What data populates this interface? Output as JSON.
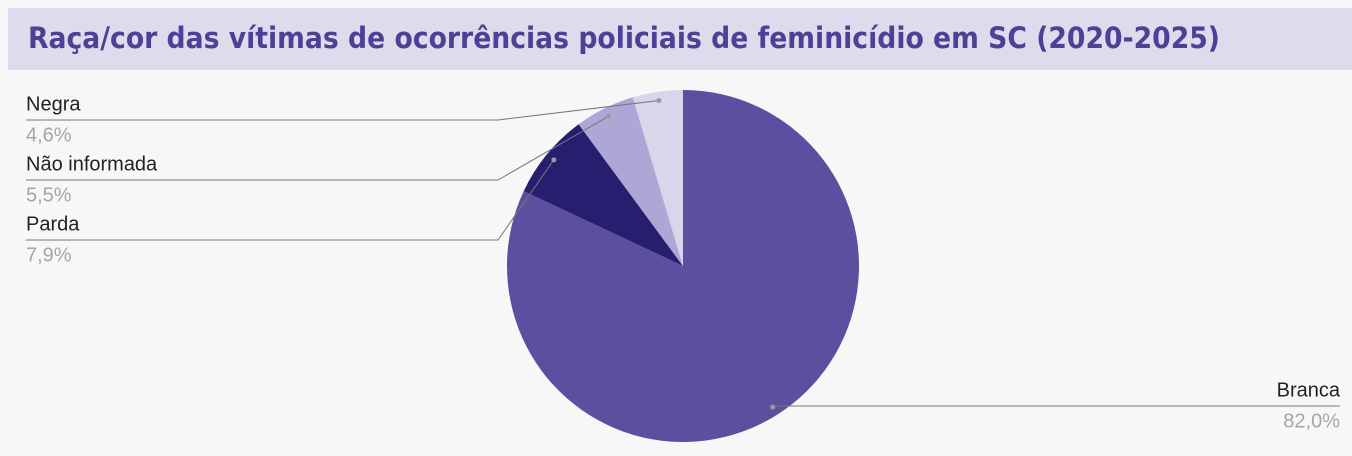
{
  "chart_data": {
    "type": "pie",
    "title": "Raça/cor das vítimas de ocorrências policiais de feminicídio em SC (2020-2025)",
    "categories": [
      "Branca",
      "Parda",
      "Não informada",
      "Negra"
    ],
    "values": [
      82.0,
      7.9,
      5.5,
      4.6
    ],
    "value_labels": [
      "82,0%",
      "7,9%",
      "5,5%",
      "4,6%"
    ],
    "colors": [
      "#5c4fa0",
      "#261e6e",
      "#aea6d4",
      "#d9d5ea"
    ]
  }
}
